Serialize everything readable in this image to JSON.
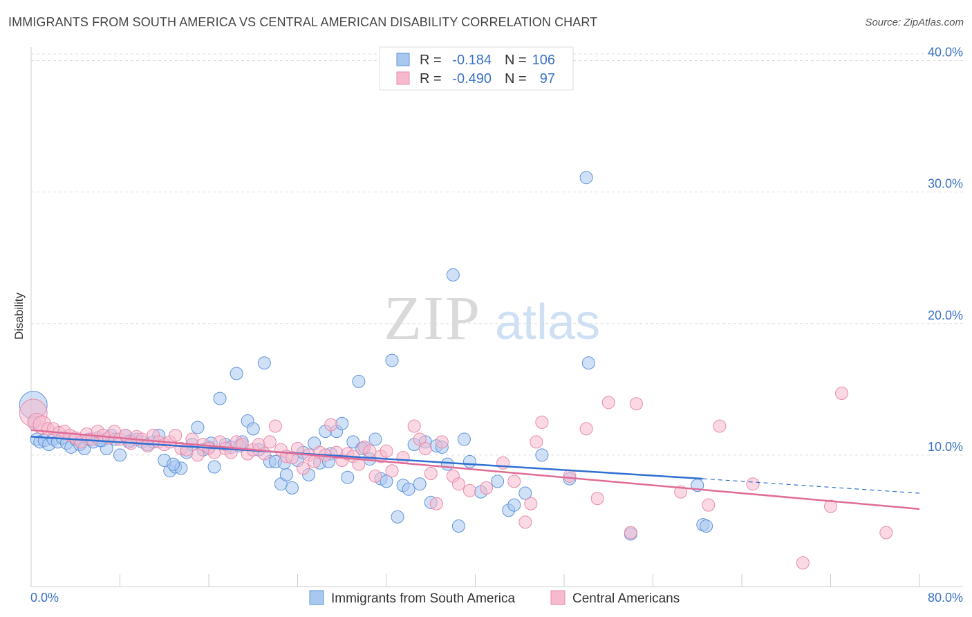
{
  "title": "IMMIGRANTS FROM SOUTH AMERICA VS CENTRAL AMERICAN DISABILITY CORRELATION CHART",
  "source": "Source: ZipAtlas.com",
  "watermark": {
    "zip": "ZIP",
    "atlas": "atlas"
  },
  "colors": {
    "blue_fill": "#a9c8f0",
    "blue_stroke": "#5f93d9",
    "blue_line": "#2f6fd1",
    "pink_fill": "#f7b9cd",
    "pink_stroke": "#e88aa8",
    "pink_line": "#e06b97",
    "tick_color": "#3a72c4",
    "grid": "#dddddd"
  },
  "legend": {
    "rows": [
      {
        "r_label": "R =",
        "r_value": "-0.184",
        "n_label": "N =",
        "n_value": "106"
      },
      {
        "r_label": "R =",
        "r_value": "-0.490",
        "n_label": "N =",
        "n_value": "97"
      }
    ]
  },
  "chart_data": {
    "type": "scatter",
    "title": "IMMIGRANTS FROM SOUTH AMERICA VS CENTRAL AMERICAN DISABILITY CORRELATION CHART",
    "xlabel": "",
    "ylabel": "Disability",
    "xlim": [
      0,
      80
    ],
    "ylim": [
      0,
      40.5
    ],
    "x_tick_labels": [
      "0.0%",
      "80.0%"
    ],
    "y_ticks": [
      10,
      20,
      30,
      40
    ],
    "y_tick_labels": [
      "10.0%",
      "20.0%",
      "30.0%",
      "40.0%"
    ],
    "grid": "horizontal dashed",
    "legend_position": "top-center",
    "series": [
      {
        "name": "Immigrants from South America",
        "color": "#a9c8f0",
        "trend": {
          "x": [
            0,
            60.5
          ],
          "y": [
            11.4,
            8.2
          ],
          "dashed_extension_to": [
            80,
            7.1
          ]
        },
        "points": [
          [
            0.2,
            13.8
          ],
          [
            0.3,
            12.5
          ],
          [
            0.5,
            11.2
          ],
          [
            0.8,
            11.0
          ],
          [
            1.2,
            11.1
          ],
          [
            1.6,
            10.8
          ],
          [
            2.0,
            11.2
          ],
          [
            2.4,
            11.0
          ],
          [
            2.8,
            11.3
          ],
          [
            3.2,
            10.9
          ],
          [
            3.6,
            10.6
          ],
          [
            4.0,
            11.2
          ],
          [
            4.4,
            10.8
          ],
          [
            4.8,
            10.5
          ],
          [
            5.2,
            11.2
          ],
          [
            5.6,
            11.0
          ],
          [
            6.0,
            11.3
          ],
          [
            6.4,
            11.1
          ],
          [
            6.8,
            10.5
          ],
          [
            7.2,
            11.5
          ],
          [
            7.6,
            11.2
          ],
          [
            8.0,
            10.0
          ],
          [
            8.5,
            11.5
          ],
          [
            9.0,
            11.1
          ],
          [
            9.5,
            11.2
          ],
          [
            10.0,
            11.0
          ],
          [
            10.5,
            10.8
          ],
          [
            11.0,
            11.0
          ],
          [
            11.5,
            11.5
          ],
          [
            12.0,
            9.6
          ],
          [
            12.5,
            8.8
          ],
          [
            13.0,
            9.1
          ],
          [
            13.5,
            9.0
          ],
          [
            14.0,
            10.2
          ],
          [
            14.5,
            10.8
          ],
          [
            15.0,
            12.1
          ],
          [
            15.5,
            10.4
          ],
          [
            16.0,
            10.6
          ],
          [
            16.5,
            9.1
          ],
          [
            17.0,
            14.3
          ],
          [
            17.5,
            10.8
          ],
          [
            18.0,
            10.6
          ],
          [
            18.5,
            16.2
          ],
          [
            19.0,
            11.0
          ],
          [
            19.5,
            12.6
          ],
          [
            20.0,
            12.0
          ],
          [
            20.5,
            10.4
          ],
          [
            21.0,
            17.0
          ],
          [
            21.5,
            9.5
          ],
          [
            22.0,
            9.5
          ],
          [
            22.5,
            7.8
          ],
          [
            23.0,
            8.5
          ],
          [
            23.5,
            7.5
          ],
          [
            24.0,
            9.6
          ],
          [
            24.5,
            10.2
          ],
          [
            25.0,
            8.5
          ],
          [
            25.5,
            10.9
          ],
          [
            26.0,
            9.4
          ],
          [
            26.5,
            11.8
          ],
          [
            27.0,
            10.1
          ],
          [
            27.5,
            11.8
          ],
          [
            28.0,
            12.4
          ],
          [
            28.5,
            8.3
          ],
          [
            29.0,
            11.0
          ],
          [
            29.5,
            15.6
          ],
          [
            30.0,
            10.6
          ],
          [
            30.5,
            9.7
          ],
          [
            31.0,
            11.2
          ],
          [
            31.5,
            8.2
          ],
          [
            32.0,
            8.0
          ],
          [
            32.5,
            17.2
          ],
          [
            33.0,
            5.3
          ],
          [
            33.5,
            7.7
          ],
          [
            34.0,
            7.4
          ],
          [
            35.0,
            7.8
          ],
          [
            35.5,
            11.0
          ],
          [
            36.0,
            6.4
          ],
          [
            36.5,
            10.7
          ],
          [
            37.0,
            10.6
          ],
          [
            37.5,
            9.3
          ],
          [
            38.0,
            23.7
          ],
          [
            38.5,
            4.6
          ],
          [
            39.5,
            9.5
          ],
          [
            40.5,
            7.2
          ],
          [
            42.0,
            8.0
          ],
          [
            43.0,
            5.8
          ],
          [
            43.5,
            6.2
          ],
          [
            44.5,
            7.1
          ],
          [
            46.0,
            10.0
          ],
          [
            48.5,
            8.2
          ],
          [
            50.0,
            31.1
          ],
          [
            50.2,
            17.0
          ],
          [
            54.0,
            4.0
          ],
          [
            60.0,
            7.7
          ],
          [
            60.5,
            4.7
          ],
          [
            60.8,
            4.6
          ],
          [
            6.2,
            11.1
          ],
          [
            8.8,
            11.0
          ],
          [
            12.8,
            9.3
          ],
          [
            16.2,
            10.9
          ],
          [
            18.8,
            10.7
          ],
          [
            22.8,
            9.4
          ],
          [
            26.8,
            9.5
          ],
          [
            29.8,
            10.5
          ],
          [
            34.5,
            10.8
          ],
          [
            39.0,
            11.2
          ]
        ],
        "sizes_note": "first point large"
      },
      {
        "name": "Central Americans",
        "color": "#f7b9cd",
        "trend": {
          "x": [
            0,
            80
          ],
          "y": [
            11.9,
            5.9
          ]
        },
        "points": [
          [
            0.2,
            13.2
          ],
          [
            0.5,
            12.5
          ],
          [
            1.0,
            12.3
          ],
          [
            1.5,
            12.0
          ],
          [
            2.0,
            12.0
          ],
          [
            2.5,
            11.7
          ],
          [
            3.0,
            11.8
          ],
          [
            3.5,
            11.5
          ],
          [
            4.0,
            11.3
          ],
          [
            4.5,
            11.0
          ],
          [
            5.0,
            11.6
          ],
          [
            5.5,
            11.2
          ],
          [
            6.0,
            11.8
          ],
          [
            6.5,
            11.5
          ],
          [
            7.0,
            11.3
          ],
          [
            7.5,
            11.8
          ],
          [
            8.0,
            11.2
          ],
          [
            8.5,
            11.5
          ],
          [
            9.0,
            10.9
          ],
          [
            9.5,
            11.4
          ],
          [
            10.0,
            11.2
          ],
          [
            10.5,
            10.7
          ],
          [
            11.0,
            11.5
          ],
          [
            11.5,
            11.0
          ],
          [
            12.0,
            10.8
          ],
          [
            12.5,
            11.0
          ],
          [
            13.0,
            11.5
          ],
          [
            13.5,
            10.5
          ],
          [
            14.0,
            10.4
          ],
          [
            14.5,
            11.2
          ],
          [
            15.0,
            10.0
          ],
          [
            15.5,
            10.8
          ],
          [
            16.0,
            10.5
          ],
          [
            16.5,
            10.2
          ],
          [
            17.0,
            11.0
          ],
          [
            17.5,
            10.5
          ],
          [
            18.0,
            10.2
          ],
          [
            18.5,
            11.0
          ],
          [
            19.0,
            10.8
          ],
          [
            19.5,
            10.1
          ],
          [
            20.0,
            10.4
          ],
          [
            20.5,
            10.8
          ],
          [
            21.0,
            10.1
          ],
          [
            21.5,
            11.0
          ],
          [
            22.0,
            12.2
          ],
          [
            22.5,
            10.4
          ],
          [
            23.0,
            9.9
          ],
          [
            23.5,
            9.8
          ],
          [
            24.0,
            10.5
          ],
          [
            24.5,
            9.0
          ],
          [
            25.0,
            10.0
          ],
          [
            25.5,
            9.5
          ],
          [
            26.0,
            10.2
          ],
          [
            26.5,
            10.0
          ],
          [
            27.0,
            12.3
          ],
          [
            27.5,
            10.2
          ],
          [
            28.0,
            9.6
          ],
          [
            28.5,
            10.1
          ],
          [
            29.0,
            9.9
          ],
          [
            29.5,
            9.3
          ],
          [
            30.0,
            10.6
          ],
          [
            30.5,
            10.3
          ],
          [
            31.0,
            8.4
          ],
          [
            31.5,
            9.9
          ],
          [
            32.0,
            10.3
          ],
          [
            32.5,
            8.8
          ],
          [
            33.5,
            9.8
          ],
          [
            34.5,
            12.2
          ],
          [
            35.0,
            11.2
          ],
          [
            35.5,
            10.5
          ],
          [
            36.0,
            8.6
          ],
          [
            36.5,
            6.3
          ],
          [
            37.0,
            11.0
          ],
          [
            38.0,
            8.4
          ],
          [
            38.5,
            7.8
          ],
          [
            39.5,
            7.3
          ],
          [
            41.0,
            7.5
          ],
          [
            42.5,
            9.4
          ],
          [
            43.5,
            8.0
          ],
          [
            44.5,
            4.9
          ],
          [
            45.0,
            6.3
          ],
          [
            45.5,
            11.0
          ],
          [
            46.0,
            12.5
          ],
          [
            48.5,
            8.4
          ],
          [
            50.0,
            12.0
          ],
          [
            51.0,
            6.7
          ],
          [
            52.0,
            14.0
          ],
          [
            54.5,
            13.9
          ],
          [
            54.0,
            4.1
          ],
          [
            58.5,
            7.2
          ],
          [
            61.0,
            6.2
          ],
          [
            62.0,
            12.2
          ],
          [
            65.0,
            7.8
          ],
          [
            69.5,
            1.8
          ],
          [
            72.0,
            6.1
          ],
          [
            73.0,
            14.7
          ],
          [
            77.0,
            4.1
          ]
        ],
        "sizes_note": "first points large"
      }
    ]
  },
  "bottom_legend": [
    {
      "label": "Immigrants from South America"
    },
    {
      "label": "Central Americans"
    }
  ]
}
